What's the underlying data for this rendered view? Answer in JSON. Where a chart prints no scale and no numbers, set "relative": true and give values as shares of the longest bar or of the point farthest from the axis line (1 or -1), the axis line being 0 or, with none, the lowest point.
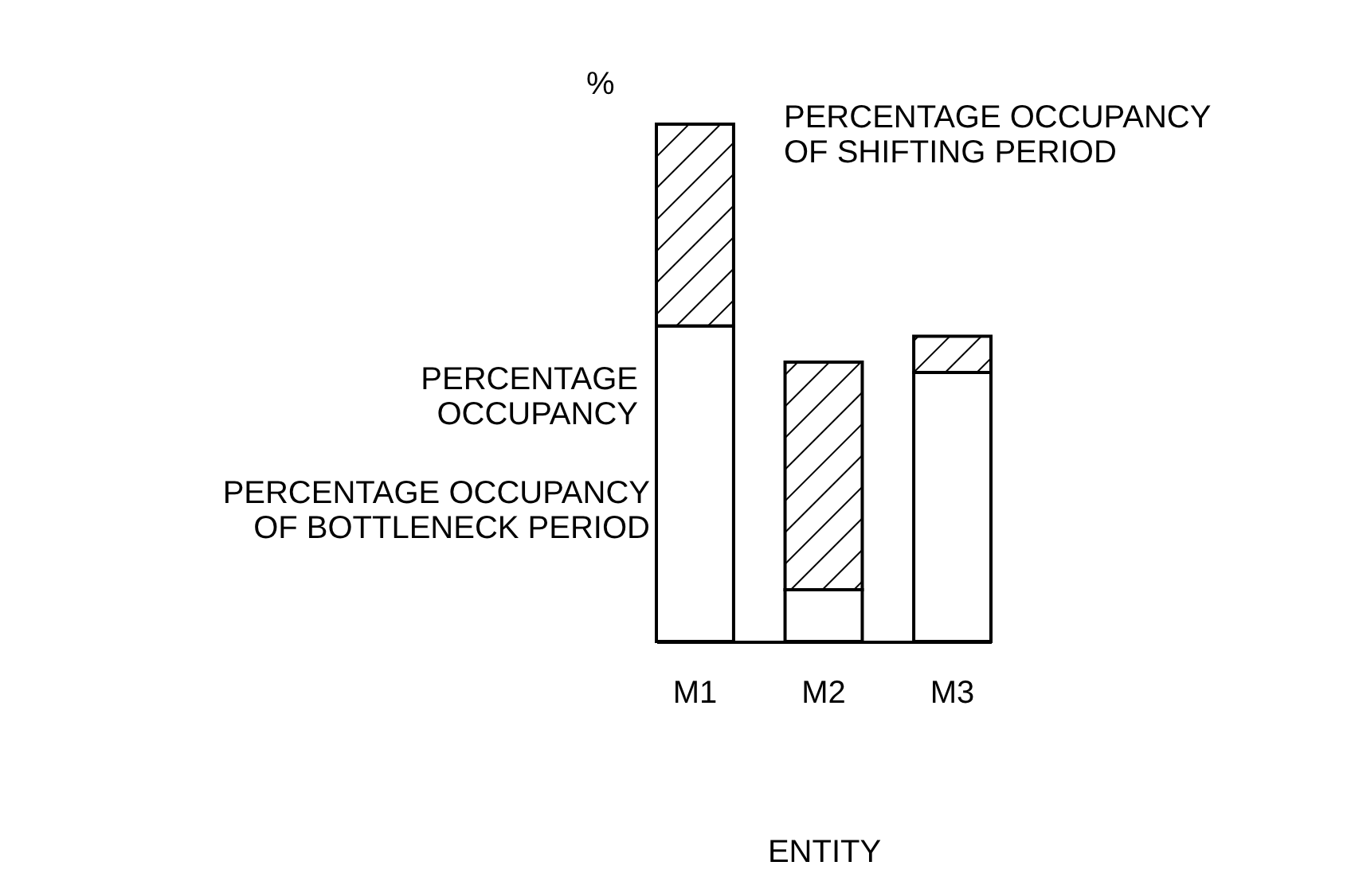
{
  "chart_data": {
    "type": "bar",
    "stacked": true,
    "relative": true,
    "xlabel": "ENTITY",
    "ylabel": "PERCENTAGE OCCUPANCY",
    "annotations": [
      "%"
    ],
    "legend": false,
    "categories": [
      "M1",
      "M2",
      "M3"
    ],
    "series": [
      {
        "name": "PERCENTAGE OCCUPANCY OF BOTTLENECK PERIOD",
        "color": "#ffffff",
        "values": [
          0.61,
          0.1,
          0.52
        ]
      },
      {
        "name": "PERCENTAGE OCCUPANCY OF SHIFTING PERIOD",
        "color": "#000000",
        "values": [
          0.39,
          0.44,
          0.07
        ]
      }
    ]
  }
}
